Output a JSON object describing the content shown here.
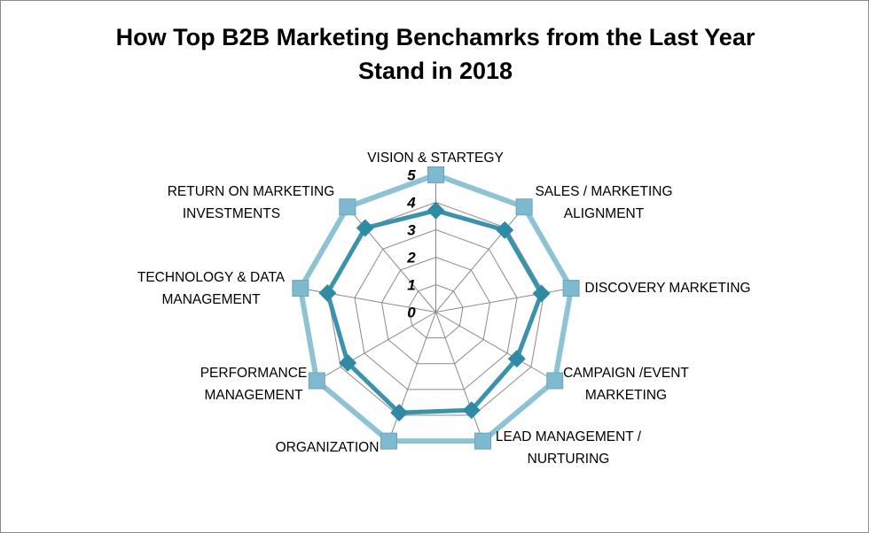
{
  "chart_data": {
    "type": "radar",
    "title": "How Top B2B Marketing Benchamrks from the Last Year Stand in 2018",
    "title_lines": [
      "How Top B2B Marketing Benchamrks from the Last Year",
      "Stand in 2018"
    ],
    "categories": [
      [
        "VISION & STARTEGY"
      ],
      [
        "SALES / MARKETING",
        "ALIGNMENT"
      ],
      [
        "DISCOVERY MARKETING"
      ],
      [
        "CAMPAIGN /EVENT",
        "MARKETING"
      ],
      [
        "LEAD MANAGEMENT /",
        "NURTURING"
      ],
      [
        "ORGANIZATION"
      ],
      [
        "PERFORMANCE",
        "MANAGEMENT"
      ],
      [
        "TECHNOLOGY & DATA",
        "MANAGEMENT"
      ],
      [
        "RETURN ON MARKETING",
        "INVESTMENTS"
      ]
    ],
    "series": [
      {
        "values": [
          5,
          5,
          5,
          5,
          5,
          5,
          5,
          5,
          5
        ],
        "color": "#8ec3d6",
        "marker": "square"
      },
      {
        "values": [
          3.7,
          3.9,
          3.9,
          3.4,
          3.8,
          3.9,
          3.7,
          4.0,
          4.0
        ],
        "color": "#3a93ab",
        "marker": "diamond"
      }
    ],
    "rlim": [
      0,
      5
    ],
    "ticks": [
      "0",
      "1",
      "2",
      "3",
      "4",
      "5"
    ],
    "grid": true,
    "legend": "none"
  }
}
